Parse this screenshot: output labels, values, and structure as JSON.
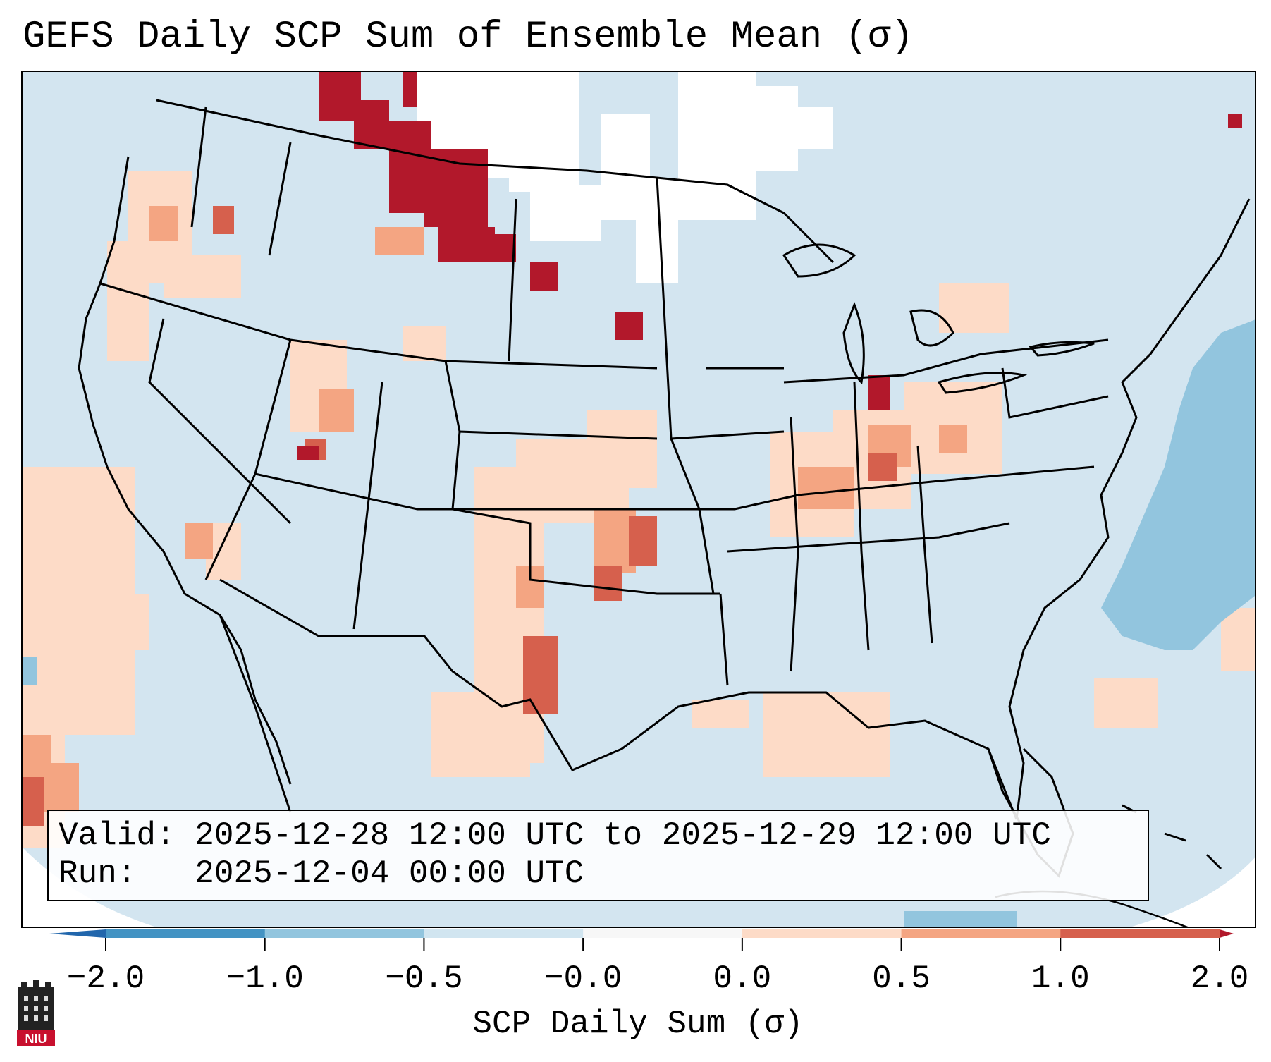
{
  "title": "GEFS Daily SCP Sum of Ensemble Mean (σ)",
  "valid_line": "Valid: 2025-12-28 12:00 UTC to 2025-12-29 12:00 UTC",
  "run_line": "Run:   2025-12-04 00:00 UTC",
  "colorbar": {
    "label": "SCP Daily Sum (σ)",
    "ticks": [
      "−2.0",
      "−1.0",
      "−0.5",
      "−0.0",
      "0.0",
      "0.5",
      "1.0",
      "2.0"
    ],
    "bin_colors": [
      "#4393c3",
      "#92c5de",
      "#d1e5f0",
      "#f7f7f7",
      "#fddbc7",
      "#f4a582",
      "#d6604d"
    ],
    "extend_low_color": "#2166ac",
    "extend_high_color": "#b2182b"
  },
  "logo": {
    "text": "NIU",
    "icon": "niu-logo-icon"
  },
  "colors": {
    "background_field": "#d1e5f0",
    "pos_low": "#fddbc7",
    "pos_mid": "#f4a582",
    "pos_high": "#d6604d",
    "pos_max": "#b2182b",
    "neg_mid": "#92c5de",
    "no_data": "#ffffff"
  }
}
